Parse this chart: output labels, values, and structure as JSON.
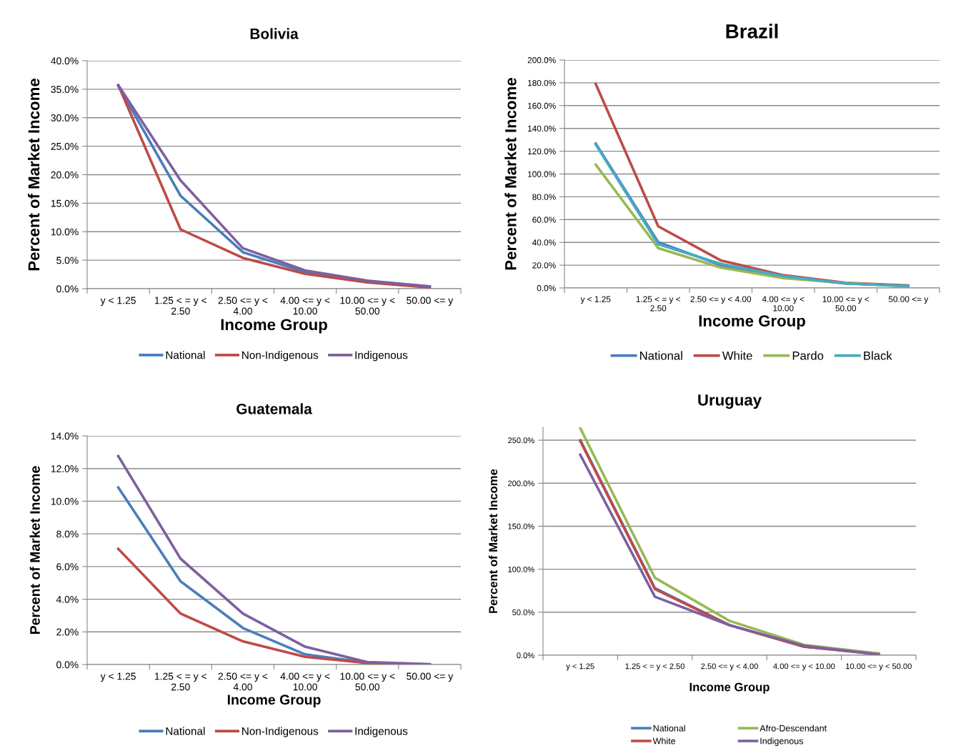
{
  "chart_data": [
    {
      "type": "line",
      "title": "Bolivia",
      "xlabel": "Income Group",
      "ylabel": "Percent of Market Income",
      "categories": [
        "y < 1.25",
        "1.25 < = y <\n2.50",
        "2.50 <= y <\n4.00",
        "4.00 <= y <\n10.00",
        "10.00 <= y <\n50.00",
        "50.00 <= y"
      ],
      "series": [
        {
          "name": "National",
          "color": "#4a7ebb",
          "values": [
            35.6,
            16.3,
            6.4,
            2.9,
            1.3,
            0.4
          ]
        },
        {
          "name": "Non-Indigenous",
          "color": "#be4b48",
          "values": [
            35.7,
            10.4,
            5.4,
            2.6,
            1.1,
            0.2
          ]
        },
        {
          "name": "Indigenous",
          "color": "#7d60a0",
          "values": [
            35.7,
            19.0,
            7.1,
            3.2,
            1.4,
            0.4
          ]
        }
      ],
      "ylim": [
        0,
        40
      ],
      "yticks": [
        {
          "value": 0,
          "label": "0.0%"
        },
        {
          "value": 5,
          "label": "5.0%"
        },
        {
          "value": 10,
          "label": "10.0%"
        },
        {
          "value": 15,
          "label": "15.0%"
        },
        {
          "value": 20,
          "label": "20.0%"
        },
        {
          "value": 25,
          "label": "25.0%"
        },
        {
          "value": 30,
          "label": "30.0%"
        },
        {
          "value": 35,
          "label": "35.0%"
        },
        {
          "value": 40,
          "label": "40.0%"
        }
      ],
      "grid": "y",
      "legend": "bottom",
      "marker": "none",
      "line_style": "solid"
    },
    {
      "type": "line",
      "title": "Brazil",
      "xlabel": "Income Group",
      "ylabel": "Percent of Market Income",
      "categories": [
        "y < 1.25",
        "1.25 < = y <\n2.50",
        "2.50 <= y < 4.00",
        "4.00 <= y <\n10.00",
        "10.00 <= y <\n50.00",
        "50.00 <= y"
      ],
      "series": [
        {
          "name": "National",
          "color": "#4a7ebb",
          "values": [
            126.6,
            40.2,
            20.1,
            9.7,
            3.9,
            1.9
          ]
        },
        {
          "name": "White",
          "color": "#be4b48",
          "values": [
            179,
            54.1,
            24.2,
            11.2,
            4.5,
            2.2
          ]
        },
        {
          "name": "Pardo",
          "color": "#98b954",
          "values": [
            108.2,
            35,
            17.9,
            8.6,
            4.3,
            1.3
          ]
        },
        {
          "name": "Black",
          "color": "#46aac5",
          "values": [
            126,
            38.4,
            21.2,
            10.4,
            3.9,
            1.7
          ]
        }
      ],
      "ylim": [
        0,
        200
      ],
      "yticks": [
        {
          "value": 0,
          "label": "0.0%"
        },
        {
          "value": 20,
          "label": "20.0%"
        },
        {
          "value": 40,
          "label": "40.0%"
        },
        {
          "value": 60,
          "label": "60.0%"
        },
        {
          "value": 80,
          "label": "80.0%"
        },
        {
          "value": 100,
          "label": "100.0%"
        },
        {
          "value": 120,
          "label": "120.0%"
        },
        {
          "value": 140,
          "label": "140.0%"
        },
        {
          "value": 160,
          "label": "160.0%"
        },
        {
          "value": 180,
          "label": "180.0%"
        },
        {
          "value": 200,
          "label": "200.0%"
        }
      ],
      "grid": "y",
      "legend": "bottom",
      "marker": "none",
      "line_style": "solid"
    },
    {
      "type": "line",
      "title": "Guatemala",
      "xlabel": "Income Group",
      "ylabel": "Percent of Market Income",
      "categories": [
        "y < 1.25",
        "1.25 < = y <\n2.50",
        "2.50 <= y <\n4.00",
        "4.00 <= y <\n10.00",
        "10.00 <= y <\n50.00",
        "50.00 <= y"
      ],
      "series": [
        {
          "name": "National",
          "color": "#4a7ebb",
          "values": [
            10.84,
            5.09,
            2.24,
            0.62,
            0.12,
            0
          ]
        },
        {
          "name": "Non-Indigenous",
          "color": "#be4b48",
          "values": [
            7.08,
            3.12,
            1.42,
            0.47,
            0.09,
            0
          ]
        },
        {
          "name": "Indigenous",
          "color": "#7d60a0",
          "values": [
            12.76,
            6.48,
            3.12,
            1.09,
            0.15,
            0.02
          ]
        }
      ],
      "ylim": [
        0,
        14
      ],
      "yticks": [
        {
          "value": 0,
          "label": "0.0%"
        },
        {
          "value": 2,
          "label": "2.0%"
        },
        {
          "value": 4,
          "label": "4.0%"
        },
        {
          "value": 6,
          "label": "6.0%"
        },
        {
          "value": 8,
          "label": "8.0%"
        },
        {
          "value": 10,
          "label": "10.0%"
        },
        {
          "value": 12,
          "label": "12.0%"
        },
        {
          "value": 14,
          "label": "14.0%"
        }
      ],
      "grid": "y",
      "legend": "bottom",
      "marker": "none",
      "line_style": "solid"
    },
    {
      "type": "line",
      "title": "Uruguay",
      "xlabel": "Income Group",
      "ylabel": "Percent of Market Income",
      "categories": [
        "y < 1.25",
        "1.25 < = y < 2.50",
        "2.50 <= y < 4.00",
        "4.00 <= y < 10.00",
        "10.00 <= y < 50.00"
      ],
      "series": [
        {
          "name": "National",
          "color": "#4a7ebb",
          "values": [
            250,
            78,
            35,
            10,
            2
          ]
        },
        {
          "name": "White",
          "color": "#be4b48",
          "values": [
            249,
            77,
            35,
            10,
            1
          ]
        },
        {
          "name": "Afro-Descendant",
          "color": "#98b954",
          "values": [
            264,
            90,
            40,
            12,
            2
          ]
        },
        {
          "name": "Indigenous",
          "color": "#7d60a0",
          "values": [
            233,
            68,
            35,
            11,
            1
          ]
        }
      ],
      "ylim": [
        0,
        265
      ],
      "yticks": [
        {
          "value": 0,
          "label": "0.0%"
        },
        {
          "value": 50,
          "label": "50.0%"
        },
        {
          "value": 100,
          "label": "100.0%"
        },
        {
          "value": 150,
          "label": "150.0%"
        },
        {
          "value": 200,
          "label": "200.0%"
        },
        {
          "value": 250,
          "label": "250.0%"
        }
      ],
      "grid": "y",
      "legend": "bottom",
      "marker": "none",
      "line_style": "solid"
    }
  ]
}
